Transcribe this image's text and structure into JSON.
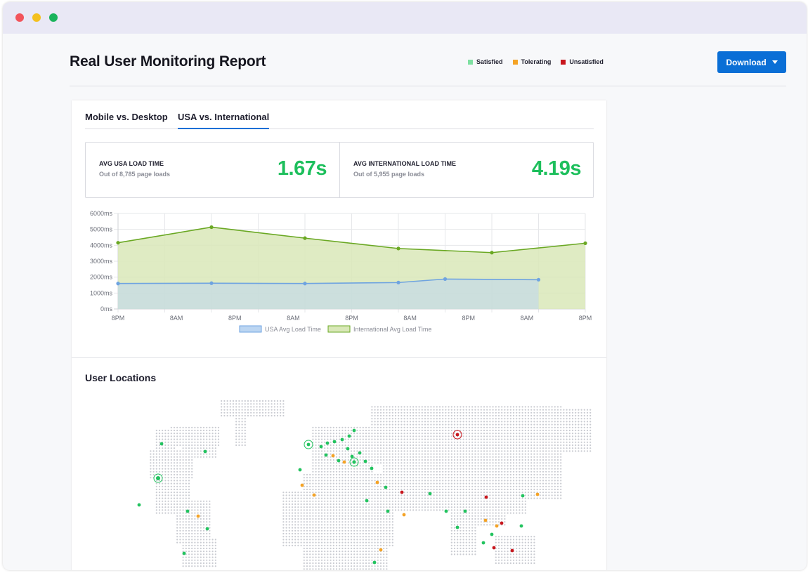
{
  "header": {
    "title": "Real User Monitoring Report",
    "legend": [
      {
        "label": "Satisfied",
        "color": "#7ee0a1"
      },
      {
        "label": "Tolerating",
        "color": "#f4a326"
      },
      {
        "label": "Unsatisfied",
        "color": "#c8161d"
      }
    ],
    "download_label": "Download"
  },
  "tabs": [
    {
      "label": "Mobile vs. Desktop",
      "active": false
    },
    {
      "label": "USA vs. International",
      "active": true
    }
  ],
  "stats": [
    {
      "label": "AVG USA LOAD TIME",
      "sub": "Out of 8,785 page loads",
      "value": "1.67s"
    },
    {
      "label": "AVG INTERNATIONAL LOAD TIME",
      "sub": "Out of 5,955 page loads",
      "value": "4.19s"
    }
  ],
  "chart_data": {
    "type": "area",
    "x": [
      "8PM",
      "8AM",
      "8PM",
      "8AM",
      "8PM",
      "8AM",
      "8PM",
      "8AM",
      "8PM"
    ],
    "y_ticks": [
      "0ms",
      "1000ms",
      "2000ms",
      "3000ms",
      "4000ms",
      "5000ms",
      "6000ms"
    ],
    "ylim": [
      0,
      6000
    ],
    "series": [
      {
        "name": "USA Avg Load Time",
        "color": "#6ea3e0",
        "fill": "#bcd6f2",
        "points": [
          [
            0,
            1600
          ],
          [
            2,
            1620
          ],
          [
            4,
            1600
          ],
          [
            6,
            1660
          ],
          [
            7,
            1880
          ],
          [
            9,
            1840
          ]
        ]
      },
      {
        "name": "International Avg Load Time",
        "color": "#6aa823",
        "fill": "#d9e8b8",
        "points": [
          [
            0,
            4160
          ],
          [
            2,
            5140
          ],
          [
            4,
            4450
          ],
          [
            6,
            3800
          ],
          [
            8,
            3540
          ],
          [
            10,
            4130
          ]
        ]
      }
    ],
    "grid": true,
    "legend_position": "bottom"
  },
  "locations": {
    "title": "User Locations"
  }
}
